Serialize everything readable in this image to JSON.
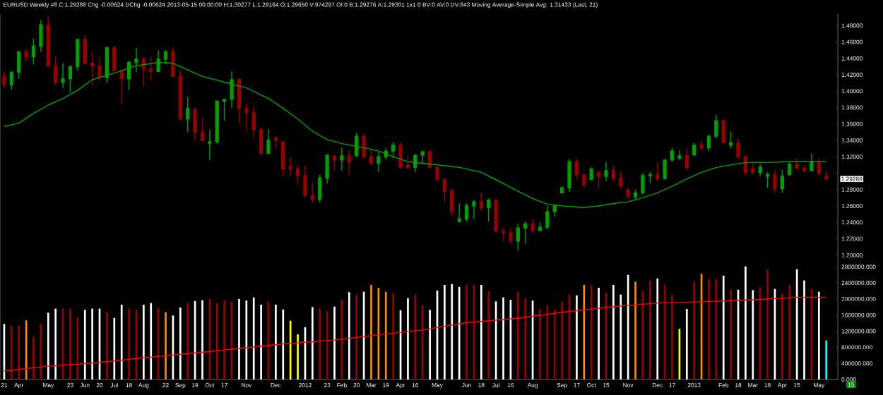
{
  "chart_data": [
    {
      "type": "candlestick",
      "title": "EURUSD Weekly #8 C:1.29288 Chg -0.00624 DChg -0.00624 2013-05-15 00:00:00 H:1.30277 L:1.29164 O:1.29650 V:974297 OI:0 B:1.29276 A:1.29301 1x1 0 BV:0 AV:0 DV:843 Moving Average-Simple Avg: 1.31433 (Last, 21)",
      "x": [
        "2011-03-21",
        "2011-03-28",
        "2011-04-04",
        "2011-04-11",
        "2011-04-18",
        "2011-04-25",
        "2011-05-02",
        "2011-05-09",
        "2011-05-16",
        "2011-05-23",
        "2011-05-30",
        "2011-06-06",
        "2011-06-13",
        "2011-06-20",
        "2011-06-27",
        "2011-07-04",
        "2011-07-11",
        "2011-07-18",
        "2011-07-25",
        "2011-08-01",
        "2011-08-08",
        "2011-08-15",
        "2011-08-22",
        "2011-08-29",
        "2011-09-05",
        "2011-09-12",
        "2011-09-19",
        "2011-09-26",
        "2011-10-03",
        "2011-10-10",
        "2011-10-17",
        "2011-10-24",
        "2011-10-31",
        "2011-11-07",
        "2011-11-14",
        "2011-11-21",
        "2011-11-28",
        "2011-12-05",
        "2011-12-12",
        "2011-12-19",
        "2011-12-26",
        "2012-01-02",
        "2012-01-09",
        "2012-01-16",
        "2012-01-23",
        "2012-01-30",
        "2012-02-06",
        "2012-02-13",
        "2012-02-20",
        "2012-02-27",
        "2012-03-05",
        "2012-03-12",
        "2012-03-19",
        "2012-03-26",
        "2012-04-02",
        "2012-04-09",
        "2012-04-16",
        "2012-04-23",
        "2012-04-30",
        "2012-05-07",
        "2012-05-14",
        "2012-05-21",
        "2012-05-28",
        "2012-06-04",
        "2012-06-11",
        "2012-06-18",
        "2012-06-25",
        "2012-07-02",
        "2012-07-09",
        "2012-07-16",
        "2012-07-23",
        "2012-07-30",
        "2012-08-06",
        "2012-08-13",
        "2012-08-20",
        "2012-08-27",
        "2012-09-03",
        "2012-09-10",
        "2012-09-17",
        "2012-09-24",
        "2012-10-01",
        "2012-10-08",
        "2012-10-15",
        "2012-10-22",
        "2012-10-29",
        "2012-11-05",
        "2012-11-12",
        "2012-11-19",
        "2012-11-26",
        "2012-12-03",
        "2012-12-10",
        "2012-12-17",
        "2012-12-24",
        "2012-12-31",
        "2013-01-07",
        "2013-01-14",
        "2013-01-21",
        "2013-01-28",
        "2013-02-04",
        "2013-02-11",
        "2013-02-18",
        "2013-02-25",
        "2013-03-04",
        "2013-03-11",
        "2013-03-18",
        "2013-03-25",
        "2013-04-01",
        "2013-04-08",
        "2013-04-15",
        "2013-04-22",
        "2013-04-29",
        "2013-05-06",
        "2013-05-13"
      ],
      "ohlc": [
        [
          1.418,
          1.424,
          1.404,
          1.408
        ],
        [
          1.408,
          1.424,
          1.402,
          1.423
        ],
        [
          1.423,
          1.448,
          1.415,
          1.448
        ],
        [
          1.448,
          1.451,
          1.437,
          1.442
        ],
        [
          1.442,
          1.464,
          1.433,
          1.455
        ],
        [
          1.455,
          1.487,
          1.448,
          1.481
        ],
        [
          1.481,
          1.492,
          1.43,
          1.431
        ],
        [
          1.431,
          1.442,
          1.407,
          1.411
        ],
        [
          1.411,
          1.434,
          1.404,
          1.415
        ],
        [
          1.415,
          1.431,
          1.398,
          1.43
        ],
        [
          1.43,
          1.464,
          1.425,
          1.463
        ],
        [
          1.463,
          1.469,
          1.434,
          1.434
        ],
        [
          1.434,
          1.448,
          1.407,
          1.431
        ],
        [
          1.431,
          1.442,
          1.413,
          1.417
        ],
        [
          1.417,
          1.454,
          1.41,
          1.453
        ],
        [
          1.453,
          1.455,
          1.424,
          1.425
        ],
        [
          1.425,
          1.425,
          1.384,
          1.415
        ],
        [
          1.415,
          1.437,
          1.401,
          1.435
        ],
        [
          1.435,
          1.453,
          1.423,
          1.439
        ],
        [
          1.439,
          1.442,
          1.406,
          1.427
        ],
        [
          1.427,
          1.441,
          1.413,
          1.424
        ],
        [
          1.424,
          1.45,
          1.424,
          1.439
        ],
        [
          1.439,
          1.45,
          1.433,
          1.448
        ],
        [
          1.448,
          1.454,
          1.418,
          1.418
        ],
        [
          1.418,
          1.425,
          1.366,
          1.366
        ],
        [
          1.366,
          1.393,
          1.35,
          1.379
        ],
        [
          1.378,
          1.378,
          1.34,
          1.35
        ],
        [
          1.35,
          1.368,
          1.338,
          1.34
        ],
        [
          1.336,
          1.353,
          1.316,
          1.338
        ],
        [
          1.338,
          1.388,
          1.336,
          1.388
        ],
        [
          1.388,
          1.39,
          1.364,
          1.39
        ],
        [
          1.39,
          1.424,
          1.379,
          1.414
        ],
        [
          1.414,
          1.417,
          1.361,
          1.379
        ],
        [
          1.379,
          1.385,
          1.35,
          1.374
        ],
        [
          1.374,
          1.381,
          1.343,
          1.353
        ],
        [
          1.353,
          1.355,
          1.322,
          1.324
        ],
        [
          1.324,
          1.354,
          1.324,
          1.34
        ],
        [
          1.343,
          1.345,
          1.33,
          1.34
        ],
        [
          1.338,
          1.338,
          1.296,
          1.305
        ],
        [
          1.308,
          1.32,
          1.296,
          1.305
        ],
        [
          1.305,
          1.31,
          1.286,
          1.297
        ],
        [
          1.297,
          1.309,
          1.27,
          1.273
        ],
        [
          1.273,
          1.288,
          1.264,
          1.268
        ],
        [
          1.268,
          1.298,
          1.264,
          1.294
        ],
        [
          1.294,
          1.323,
          1.287,
          1.322
        ],
        [
          1.321,
          1.321,
          1.303,
          1.316
        ],
        [
          1.316,
          1.331,
          1.303,
          1.321
        ],
        [
          1.321,
          1.328,
          1.298,
          1.314
        ],
        [
          1.321,
          1.349,
          1.321,
          1.345
        ],
        [
          1.345,
          1.348,
          1.318,
          1.32
        ],
        [
          1.32,
          1.33,
          1.31,
          1.312
        ],
        [
          1.312,
          1.326,
          1.301,
          1.32
        ],
        [
          1.32,
          1.33,
          1.316,
          1.327
        ],
        [
          1.327,
          1.338,
          1.318,
          1.334
        ],
        [
          1.334,
          1.338,
          1.305,
          1.307
        ],
        [
          1.31,
          1.321,
          1.304,
          1.307
        ],
        [
          1.307,
          1.322,
          1.301,
          1.322
        ],
        [
          1.322,
          1.327,
          1.311,
          1.326
        ],
        [
          1.326,
          1.328,
          1.307,
          1.307
        ],
        [
          1.307,
          1.307,
          1.292,
          1.292
        ],
        [
          1.292,
          1.292,
          1.265,
          1.278
        ],
        [
          1.278,
          1.282,
          1.248,
          1.253
        ],
        [
          1.241,
          1.263,
          1.24,
          1.244
        ],
        [
          1.244,
          1.263,
          1.241,
          1.26
        ],
        [
          1.26,
          1.267,
          1.244,
          1.265
        ],
        [
          1.265,
          1.276,
          1.254,
          1.258
        ],
        [
          1.258,
          1.269,
          1.241,
          1.267
        ],
        [
          1.267,
          1.268,
          1.229,
          1.229
        ],
        [
          1.229,
          1.233,
          1.217,
          1.227
        ],
        [
          1.227,
          1.233,
          1.214,
          1.217
        ],
        [
          1.217,
          1.238,
          1.205,
          1.233
        ],
        [
          1.233,
          1.241,
          1.214,
          1.238
        ],
        [
          1.238,
          1.244,
          1.227,
          1.23
        ],
        [
          1.23,
          1.24,
          1.23,
          1.234
        ],
        [
          1.234,
          1.26,
          1.231,
          1.253
        ],
        [
          1.253,
          1.262,
          1.247,
          1.26
        ],
        [
          1.276,
          1.284,
          1.276,
          1.282
        ],
        [
          1.282,
          1.317,
          1.277,
          1.314
        ],
        [
          1.314,
          1.317,
          1.292,
          1.298
        ],
        [
          1.298,
          1.298,
          1.282,
          1.286
        ],
        [
          1.292,
          1.307,
          1.292,
          1.305
        ],
        [
          1.301,
          1.301,
          1.281,
          1.296
        ],
        [
          1.296,
          1.314,
          1.29,
          1.303
        ],
        [
          1.303,
          1.309,
          1.29,
          1.294
        ],
        [
          1.294,
          1.302,
          1.282,
          1.284
        ],
        [
          1.28,
          1.28,
          1.27,
          1.271
        ],
        [
          1.271,
          1.28,
          1.267,
          1.276
        ],
        [
          1.276,
          1.3,
          1.274,
          1.297
        ],
        [
          1.297,
          1.301,
          1.288,
          1.298
        ],
        [
          1.298,
          1.313,
          1.29,
          1.293
        ],
        [
          1.293,
          1.317,
          1.293,
          1.316
        ],
        [
          1.316,
          1.331,
          1.314,
          1.327
        ],
        [
          1.318,
          1.328,
          1.316,
          1.321
        ],
        [
          1.321,
          1.33,
          1.303,
          1.307
        ],
        [
          1.322,
          1.337,
          1.322,
          1.334
        ],
        [
          1.334,
          1.34,
          1.327,
          1.331
        ],
        [
          1.331,
          1.347,
          1.327,
          1.345
        ],
        [
          1.345,
          1.371,
          1.343,
          1.364
        ],
        [
          1.364,
          1.366,
          1.336,
          1.337
        ],
        [
          1.334,
          1.351,
          1.33,
          1.337
        ],
        [
          1.337,
          1.343,
          1.318,
          1.32
        ],
        [
          1.32,
          1.322,
          1.298,
          1.301
        ],
        [
          1.305,
          1.313,
          1.298,
          1.301
        ],
        [
          1.301,
          1.311,
          1.296,
          1.307
        ],
        [
          1.296,
          1.301,
          1.282,
          1.298
        ],
        [
          1.298,
          1.304,
          1.276,
          1.281
        ],
        [
          1.281,
          1.304,
          1.276,
          1.296
        ],
        [
          1.298,
          1.313,
          1.298,
          1.311
        ],
        [
          1.311,
          1.318,
          1.304,
          1.306
        ],
        [
          1.306,
          1.31,
          1.301,
          1.303
        ],
        [
          1.303,
          1.324,
          1.303,
          1.313
        ],
        [
          1.313,
          1.318,
          1.296,
          1.3
        ],
        [
          1.2965,
          1.30277,
          1.29164,
          1.29288
        ]
      ],
      "colors": [
        "#990000",
        "#00a000",
        "#00a000",
        "#990000",
        "#00a000",
        "#00a000",
        "#990000",
        "#990000",
        "#00a000",
        "#00a000",
        "#00a000",
        "#990000",
        "#990000",
        "#990000",
        "#00a000",
        "#990000",
        "#990000",
        "#00a000",
        "#00a000",
        "#990000",
        "#990000",
        "#00a000",
        "#00a000",
        "#990000",
        "#990000",
        "#00a000",
        "#990000",
        "#990000",
        "#00a000",
        "#00a000",
        "#00a000",
        "#00a000",
        "#990000",
        "#990000",
        "#990000",
        "#990000",
        "#00a000",
        "#990000",
        "#990000",
        "#990000",
        "#990000",
        "#990000",
        "#990000",
        "#00a000",
        "#00a000",
        "#990000",
        "#00a000",
        "#990000",
        "#00a000",
        "#990000",
        "#990000",
        "#00a000",
        "#00a000",
        "#00a000",
        "#990000",
        "#990000",
        "#00a000",
        "#00a000",
        "#990000",
        "#990000",
        "#990000",
        "#990000",
        "#00a000",
        "#00a000",
        "#00a000",
        "#990000",
        "#00a000",
        "#990000",
        "#990000",
        "#990000",
        "#00a000",
        "#00a000",
        "#990000",
        "#00a000",
        "#00a000",
        "#00a000",
        "#00a000",
        "#00a000",
        "#990000",
        "#990000",
        "#00a000",
        "#990000",
        "#00a000",
        "#990000",
        "#990000",
        "#990000",
        "#00a000",
        "#00a000",
        "#00a000",
        "#990000",
        "#00a000",
        "#00a000",
        "#00a000",
        "#990000",
        "#00a000",
        "#990000",
        "#00a000",
        "#00a000",
        "#990000",
        "#00a000",
        "#990000",
        "#990000",
        "#990000",
        "#00a000",
        "#00a000",
        "#990000",
        "#00a000",
        "#00a000",
        "#990000",
        "#990000",
        "#00a000",
        "#990000",
        "#990000"
      ],
      "series": [
        {
          "type": "line",
          "color": "#00a000",
          "x": [
            "2011-03-21",
            "2011-04-04",
            "2011-04-18",
            "2011-05-02",
            "2011-05-16",
            "2011-05-30",
            "2011-06-13",
            "2011-07-04",
            "2011-07-25",
            "2011-08-15",
            "2011-08-29",
            "2011-09-12",
            "2011-09-26",
            "2011-10-17",
            "2011-11-07",
            "2011-11-28",
            "2011-12-12",
            "2011-12-26",
            "2012-01-09",
            "2012-01-23",
            "2012-02-06",
            "2012-02-27",
            "2012-03-12",
            "2012-03-26",
            "2012-04-09",
            "2012-04-23",
            "2012-05-14",
            "2012-05-28",
            "2012-06-18",
            "2012-07-02",
            "2012-07-23",
            "2012-08-06",
            "2012-08-20",
            "2012-09-03",
            "2012-09-24",
            "2012-10-08",
            "2012-10-22",
            "2012-11-05",
            "2012-11-19",
            "2012-12-03",
            "2012-12-17",
            "2012-12-31",
            "2013-01-14",
            "2013-01-28",
            "2013-02-11",
            "2013-02-25",
            "2013-03-18",
            "2013-04-08",
            "2013-04-22",
            "2013-05-13"
          ],
          "values": [
            1.357,
            1.361,
            1.373,
            1.383,
            1.391,
            1.401,
            1.414,
            1.422,
            1.431,
            1.435,
            1.434,
            1.426,
            1.418,
            1.411,
            1.404,
            1.391,
            1.379,
            1.366,
            1.351,
            1.341,
            1.336,
            1.331,
            1.327,
            1.32,
            1.314,
            1.312,
            1.309,
            1.307,
            1.301,
            1.292,
            1.278,
            1.269,
            1.262,
            1.26,
            1.258,
            1.26,
            1.263,
            1.265,
            1.27,
            1.276,
            1.284,
            1.293,
            1.301,
            1.307,
            1.31,
            1.313,
            1.313,
            1.314,
            1.314,
            1.314
          ]
        }
      ],
      "xlim": [
        "2011-03-17",
        "2013-05-24"
      ],
      "ylim": [
        1.198,
        1.494
      ],
      "yticks": [
        {
          "value": 1.2,
          "label": "1.20000"
        },
        {
          "value": 1.22,
          "label": "1.22000"
        },
        {
          "value": 1.24,
          "label": "1.24000"
        },
        {
          "value": 1.26,
          "label": "1.26000"
        },
        {
          "value": 1.28,
          "label": "1.28000"
        },
        {
          "value": 1.3,
          "label": null
        },
        {
          "value": 1.32,
          "label": "1.32000"
        },
        {
          "value": 1.34,
          "label": "1.34000"
        },
        {
          "value": 1.36,
          "label": "1.36000"
        },
        {
          "value": 1.38,
          "label": "1.38000"
        },
        {
          "value": 1.4,
          "label": "1.40000"
        },
        {
          "value": 1.42,
          "label": "1.42000"
        },
        {
          "value": 1.44,
          "label": "1.44000"
        },
        {
          "value": 1.46,
          "label": "1.46000"
        },
        {
          "value": 1.48,
          "label": "1.48000"
        }
      ],
      "annotations": [
        "1.29288"
      ],
      "tick_labels": "y"
    },
    {
      "type": "bar",
      "x": [
        "2011-03-21",
        "2011-03-28",
        "2011-04-04",
        "2011-04-11",
        "2011-04-18",
        "2011-04-25",
        "2011-05-02",
        "2011-05-09",
        "2011-05-16",
        "2011-05-23",
        "2011-05-30",
        "2011-06-06",
        "2011-06-13",
        "2011-06-20",
        "2011-06-27",
        "2011-07-04",
        "2011-07-11",
        "2011-07-18",
        "2011-07-25",
        "2011-08-01",
        "2011-08-08",
        "2011-08-15",
        "2011-08-22",
        "2011-08-29",
        "2011-09-05",
        "2011-09-12",
        "2011-09-19",
        "2011-09-26",
        "2011-10-03",
        "2011-10-10",
        "2011-10-17",
        "2011-10-24",
        "2011-10-31",
        "2011-11-07",
        "2011-11-14",
        "2011-11-21",
        "2011-11-28",
        "2011-12-05",
        "2011-12-12",
        "2011-12-19",
        "2011-12-26",
        "2012-01-02",
        "2012-01-09",
        "2012-01-16",
        "2012-01-23",
        "2012-01-30",
        "2012-02-06",
        "2012-02-13",
        "2012-02-20",
        "2012-02-27",
        "2012-03-05",
        "2012-03-12",
        "2012-03-19",
        "2012-03-26",
        "2012-04-02",
        "2012-04-09",
        "2012-04-16",
        "2012-04-23",
        "2012-04-30",
        "2012-05-07",
        "2012-05-14",
        "2012-05-21",
        "2012-05-28",
        "2012-06-04",
        "2012-06-11",
        "2012-06-18",
        "2012-06-25",
        "2012-07-02",
        "2012-07-09",
        "2012-07-16",
        "2012-07-23",
        "2012-07-30",
        "2012-08-06",
        "2012-08-13",
        "2012-08-20",
        "2012-08-27",
        "2012-09-03",
        "2012-09-10",
        "2012-09-17",
        "2012-09-24",
        "2012-10-01",
        "2012-10-08",
        "2012-10-15",
        "2012-10-22",
        "2012-10-29",
        "2012-11-05",
        "2012-11-12",
        "2012-11-19",
        "2012-11-26",
        "2012-12-03",
        "2012-12-10",
        "2012-12-17",
        "2012-12-24",
        "2012-12-31",
        "2013-01-07",
        "2013-01-14",
        "2013-01-21",
        "2013-01-28",
        "2013-02-04",
        "2013-02-11",
        "2013-02-18",
        "2013-02-25",
        "2013-03-04",
        "2013-03-11",
        "2013-03-18",
        "2013-03-25",
        "2013-04-01",
        "2013-04-08",
        "2013-04-15",
        "2013-04-22",
        "2013-04-29",
        "2013-05-06",
        "2013-05-13"
      ],
      "series": [
        {
          "type": "bar",
          "values": [
            1380000,
            1340000,
            1340000,
            1470000,
            1060000,
            1380000,
            1660000,
            1760000,
            1760000,
            1760000,
            1550000,
            1730000,
            1760000,
            1760000,
            1670000,
            1530000,
            1860000,
            1760000,
            1730000,
            1860000,
            1900000,
            1790000,
            1670000,
            1590000,
            1790000,
            1900000,
            1950000,
            1970000,
            2000000,
            1900000,
            1970000,
            1940000,
            2000000,
            1960000,
            2040000,
            1860000,
            1930000,
            1860000,
            1740000,
            1460000,
            1120000,
            1300000,
            1800000,
            1760000,
            1700000,
            1810000,
            1980000,
            2170000,
            2110000,
            2180000,
            2350000,
            2280000,
            2180000,
            2140000,
            1720000,
            2020000,
            2100000,
            1840000,
            1730000,
            2210000,
            2350000,
            2370000,
            2300000,
            2350000,
            2350000,
            2350000,
            2190000,
            1940000,
            2040000,
            1980000,
            2170000,
            2010000,
            1960000,
            1750000,
            1840000,
            1750000,
            1930000,
            2110000,
            2090000,
            2350000,
            2350000,
            2280000,
            2160000,
            2350000,
            2110000,
            2600000,
            2430000,
            2190000,
            2460000,
            2510000,
            2350000,
            2110000,
            1260000,
            1750000,
            2420000,
            2630000,
            2490000,
            2490000,
            2580000,
            2220000,
            2230000,
            2810000,
            2220000,
            2290000,
            2740000,
            2250000,
            2140000,
            2350000,
            2740000,
            2460000,
            2250000,
            2180000,
            970000
          ],
          "colors": [
            "#ffffff",
            "#990000",
            "#990000",
            "#ff8c00",
            "#990000",
            "#990000",
            "#ffffff",
            "#ffffff",
            "#990000",
            "#990000",
            "#990000",
            "#ffffff",
            "#ffffff",
            "#ffffff",
            "#990000",
            "#ffffff",
            "#ffffff",
            "#990000",
            "#990000",
            "#ffffff",
            "#ffffff",
            "#990000",
            "#ff8c00",
            "#ffffff",
            "#ffffff",
            "#990000",
            "#ffffff",
            "#ffffff",
            "#990000",
            "#990000",
            "#990000",
            "#990000",
            "#ffffff",
            "#ffffff",
            "#ffffff",
            "#ffffff",
            "#990000",
            "#ffffff",
            "#ffffff",
            "#ffff00",
            "#ffff00",
            "#ffffff",
            "#ffffff",
            "#990000",
            "#990000",
            "#ffffff",
            "#990000",
            "#ffffff",
            "#990000",
            "#ffffff",
            "#ff8c00",
            "#ff8c00",
            "#ff8c00",
            "#990000",
            "#ffffff",
            "#ffffff",
            "#990000",
            "#990000",
            "#ffffff",
            "#ffffff",
            "#ffffff",
            "#ffffff",
            "#ffffff",
            "#990000",
            "#990000",
            "#ffffff",
            "#990000",
            "#ffffff",
            "#ffffff",
            "#ffffff",
            "#990000",
            "#990000",
            "#ffffff",
            "#990000",
            "#990000",
            "#990000",
            "#990000",
            "#990000",
            "#ffffff",
            "#ff8c00",
            "#990000",
            "#ffffff",
            "#990000",
            "#ffffff",
            "#ffffff",
            "#ffffff",
            "#ff8c00",
            "#990000",
            "#990000",
            "#ffffff",
            "#990000",
            "#990000",
            "#ffff00",
            "#ffffff",
            "#990000",
            "#ff8c00",
            "#990000",
            "#990000",
            "#ffffff",
            "#990000",
            "#ffffff",
            "#ffffff",
            "#ffffff",
            "#990000",
            "#990000",
            "#ffffff",
            "#990000",
            "#990000",
            "#ffffff",
            "#ffffff",
            "#990000",
            "#ffffff",
            "#00ffff"
          ]
        },
        {
          "type": "line",
          "color": "#ff0000",
          "x": [
            "2011-03-21",
            "2011-05-02",
            "2011-06-20",
            "2011-08-01",
            "2011-09-12",
            "2011-10-31",
            "2011-12-12",
            "2012-01-30",
            "2012-03-12",
            "2012-04-23",
            "2012-06-04",
            "2012-07-23",
            "2012-09-03",
            "2012-10-22",
            "2012-12-03",
            "2013-01-14",
            "2013-03-04",
            "2013-04-15",
            "2013-05-13"
          ],
          "values": [
            210000,
            330000,
            420000,
            540000,
            640000,
            770000,
            880000,
            980000,
            1110000,
            1230000,
            1410000,
            1520000,
            1670000,
            1810000,
            1900000,
            1930000,
            1980000,
            2040000,
            2040000
          ]
        }
      ],
      "xlim": [
        "2011-03-17",
        "2013-05-24"
      ],
      "ylim": [
        0,
        3050000
      ],
      "yticks": [
        {
          "value": 0,
          "label": "0.000"
        },
        {
          "value": 400000,
          "label": "400000.000"
        },
        {
          "value": 800000,
          "label": "800000.000"
        },
        {
          "value": 1200000,
          "label": "1200000.000"
        },
        {
          "value": 1600000,
          "label": "1600000.000"
        },
        {
          "value": 2000000,
          "label": "2000000.000"
        },
        {
          "value": 2400000,
          "label": "2400000.000"
        },
        {
          "value": 2800000,
          "label": "2800000.000"
        }
      ],
      "xticks": [
        {
          "value": "2011-03-21",
          "label": "21"
        },
        {
          "value": "2011-04-04",
          "label": "Apr"
        },
        {
          "value": "2011-05-02",
          "label": "May"
        },
        {
          "value": "2011-05-23",
          "label": "23"
        },
        {
          "value": "2011-06-06",
          "label": "Jun"
        },
        {
          "value": "2011-06-20",
          "label": "20"
        },
        {
          "value": "2011-07-04",
          "label": "Jul"
        },
        {
          "value": "2011-07-18",
          "label": "18"
        },
        {
          "value": "2011-08-01",
          "label": "Aug"
        },
        {
          "value": "2011-08-22",
          "label": "22"
        },
        {
          "value": "2011-09-05",
          "label": "Sep"
        },
        {
          "value": "2011-09-19",
          "label": "19"
        },
        {
          "value": "2011-10-03",
          "label": "Oct"
        },
        {
          "value": "2011-10-17",
          "label": "17"
        },
        {
          "value": "2011-11-07",
          "label": "Nov"
        },
        {
          "value": "2011-12-05",
          "label": "Dec"
        },
        {
          "value": "2012-01-02",
          "label": "2012"
        },
        {
          "value": "2012-01-23",
          "label": "23"
        },
        {
          "value": "2012-02-06",
          "label": "Feb"
        },
        {
          "value": "2012-02-20",
          "label": "20"
        },
        {
          "value": "2012-03-05",
          "label": "Mar"
        },
        {
          "value": "2012-03-19",
          "label": "19"
        },
        {
          "value": "2012-04-02",
          "label": "Apr"
        },
        {
          "value": "2012-04-16",
          "label": "16"
        },
        {
          "value": "2012-05-07",
          "label": "May"
        },
        {
          "value": "2012-06-04",
          "label": "Jun"
        },
        {
          "value": "2012-06-18",
          "label": "18"
        },
        {
          "value": "2012-07-02",
          "label": "Jul"
        },
        {
          "value": "2012-07-16",
          "label": "16"
        },
        {
          "value": "2012-08-06",
          "label": "Aug"
        },
        {
          "value": "2012-09-03",
          "label": "Sep"
        },
        {
          "value": "2012-09-17",
          "label": "17"
        },
        {
          "value": "2012-10-01",
          "label": "Oct"
        },
        {
          "value": "2012-10-15",
          "label": "15"
        },
        {
          "value": "2012-11-05",
          "label": "Nov"
        },
        {
          "value": "2012-12-03",
          "label": "Dec"
        },
        {
          "value": "2012-12-17",
          "label": "17"
        },
        {
          "value": "2013-01-07",
          "label": "2013"
        },
        {
          "value": "2013-02-04",
          "label": "Feb"
        },
        {
          "value": "2013-02-18",
          "label": "18"
        },
        {
          "value": "2013-03-04",
          "label": "Mar"
        },
        {
          "value": "2013-03-18",
          "label": "18"
        },
        {
          "value": "2013-04-01",
          "label": "Apr"
        },
        {
          "value": "2013-04-15",
          "label": "15"
        },
        {
          "value": "2013-05-06",
          "label": "May"
        }
      ],
      "annotations": [
        "15"
      ]
    }
  ]
}
